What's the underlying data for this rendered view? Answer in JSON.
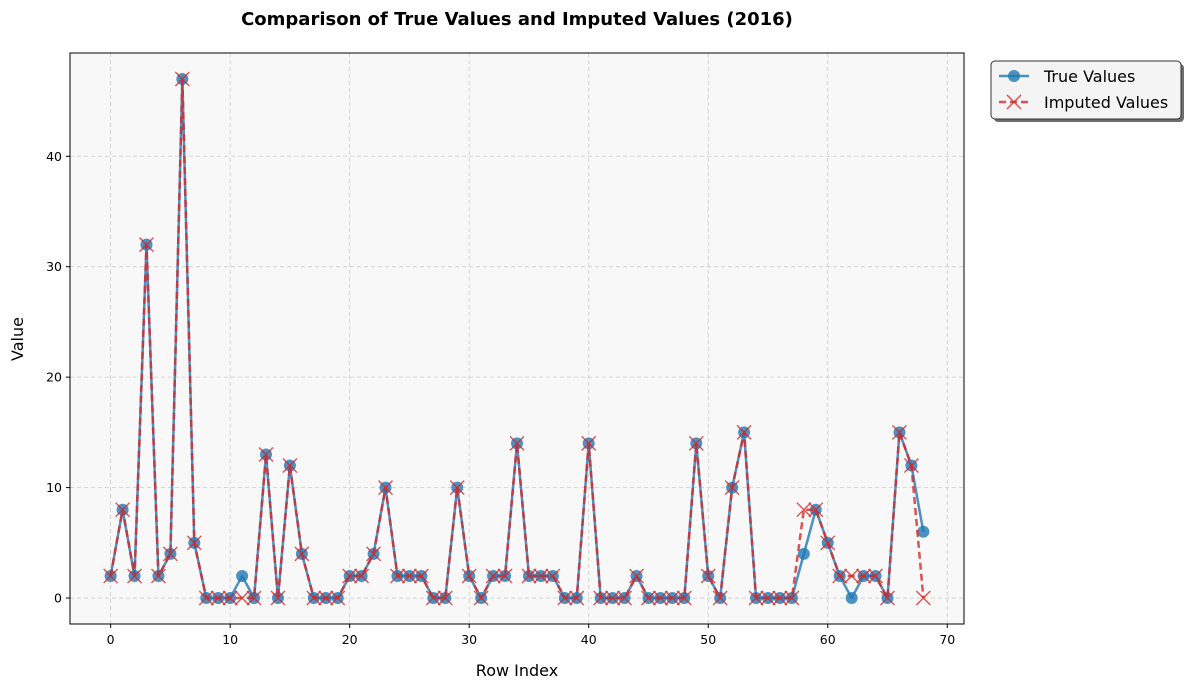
{
  "chart_data": {
    "type": "line",
    "title": "Comparison of True Values and Imputed Values (2016)",
    "xlabel": "Row Index",
    "ylabel": "Value",
    "xlim": [
      -3.4,
      71.4
    ],
    "ylim": [
      -2.35,
      49.35
    ],
    "xticks": [
      0,
      10,
      20,
      30,
      40,
      50,
      60,
      70
    ],
    "yticks": [
      0,
      10,
      20,
      30,
      40
    ],
    "grid": true,
    "legend_position": "outside-top-right",
    "colors": {
      "true": "#1f77b4",
      "imputed": "#d62728",
      "plot_bg": "#f8f8f8",
      "grid": "#cccccc"
    },
    "x": [
      0,
      1,
      2,
      3,
      4,
      5,
      6,
      7,
      8,
      9,
      10,
      11,
      12,
      13,
      14,
      15,
      16,
      17,
      18,
      19,
      20,
      21,
      22,
      23,
      24,
      25,
      26,
      27,
      28,
      29,
      30,
      31,
      32,
      33,
      34,
      35,
      36,
      37,
      38,
      39,
      40,
      41,
      42,
      43,
      44,
      45,
      46,
      47,
      48,
      49,
      50,
      51,
      52,
      53,
      54,
      55,
      56,
      57,
      58,
      59,
      60,
      61,
      62,
      63,
      64,
      65,
      66,
      67,
      68
    ],
    "series": [
      {
        "name": "True Values",
        "style": "solid-circle",
        "values": [
          2,
          8,
          2,
          32,
          2,
          4,
          47,
          5,
          0,
          0,
          0,
          2,
          0,
          13,
          0,
          12,
          4,
          0,
          0,
          0,
          2,
          2,
          4,
          10,
          2,
          2,
          2,
          0,
          0,
          10,
          2,
          0,
          2,
          2,
          14,
          2,
          2,
          2,
          0,
          0,
          14,
          0,
          0,
          0,
          2,
          0,
          0,
          0,
          0,
          14,
          2,
          0,
          10,
          15,
          0,
          0,
          0,
          0,
          4,
          8,
          5,
          2,
          0,
          2,
          2,
          0,
          15,
          12,
          6
        ]
      },
      {
        "name": "Imputed Values",
        "style": "dashed-x",
        "values": [
          2,
          8,
          2,
          32,
          2,
          4,
          47,
          5,
          0,
          0,
          0,
          0,
          0,
          13,
          0,
          12,
          4,
          0,
          0,
          0,
          2,
          2,
          4,
          10,
          2,
          2,
          2,
          0,
          0,
          10,
          2,
          0,
          2,
          2,
          14,
          2,
          2,
          2,
          0,
          0,
          14,
          0,
          0,
          0,
          2,
          0,
          0,
          0,
          0,
          14,
          2,
          0,
          10,
          15,
          0,
          0,
          0,
          0,
          8,
          8,
          5,
          2,
          2,
          2,
          2,
          0,
          15,
          12,
          0
        ]
      }
    ]
  }
}
